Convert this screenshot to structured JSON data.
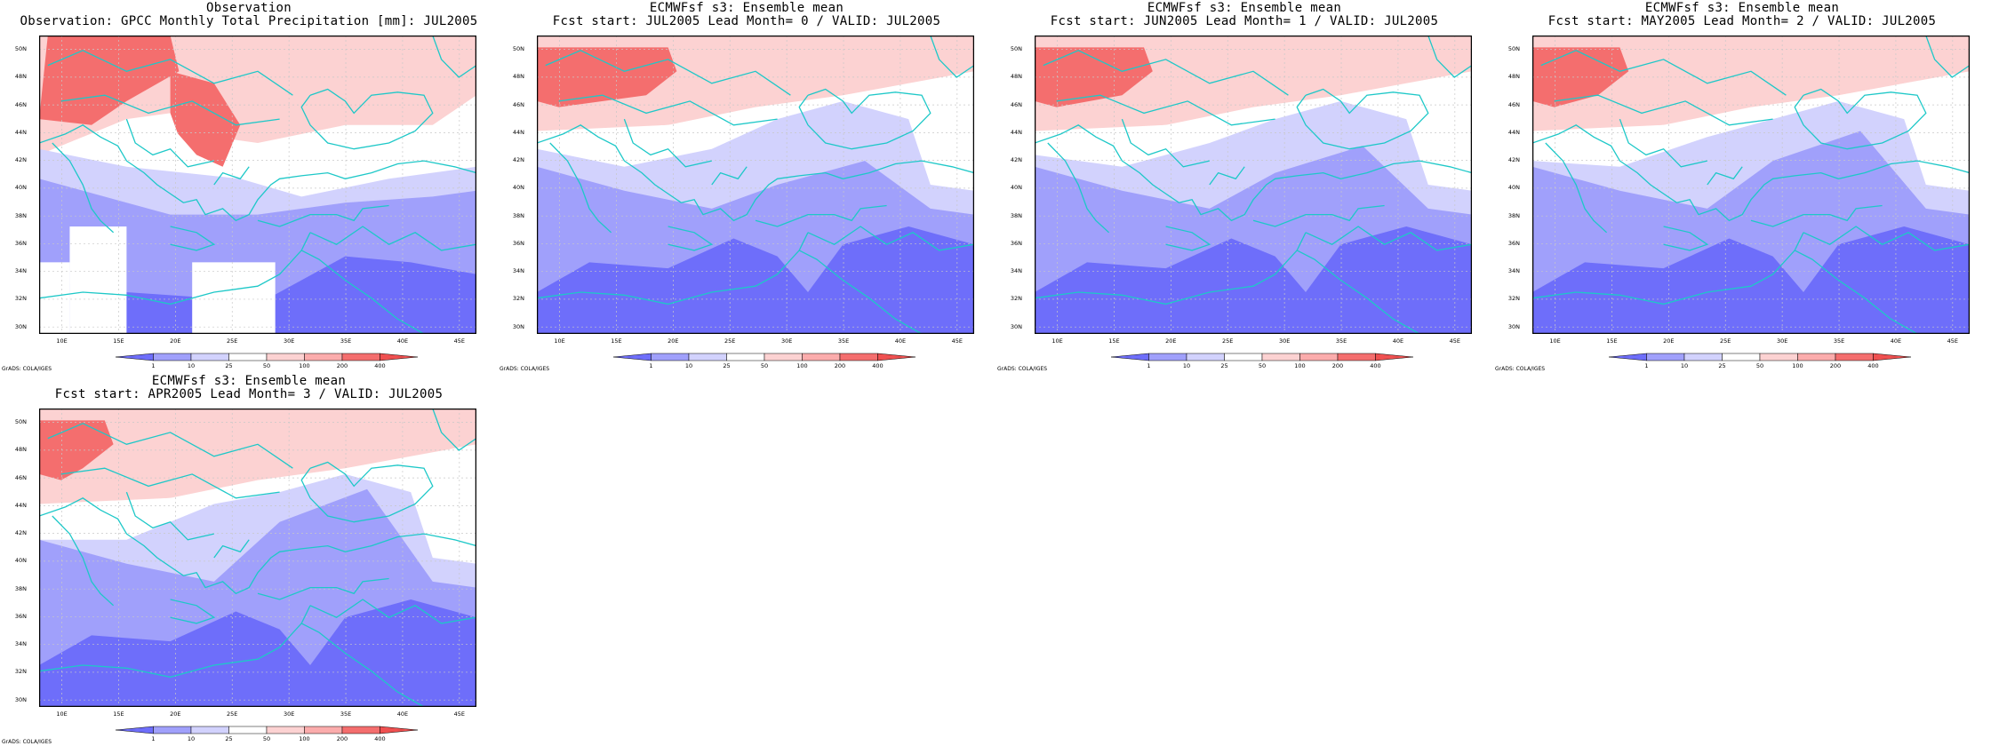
{
  "panels": [
    {
      "title_line1": "Observation",
      "title_line2": "Observation: GPCC Monthly Total Precipitation [mm]: JUL2005",
      "kind": "observation",
      "pattern": {
        "red_strong": [
          [
            0,
            0.04,
            0.3,
            0.16
          ],
          [
            0.28,
            0.18,
            0.42,
            0.42
          ]
        ],
        "red_light": [
          [
            0.0,
            0.0,
            0.95,
            0.34
          ]
        ],
        "blue_light": [
          [
            0.0,
            0.38,
            1.0,
            1.0
          ]
        ],
        "blue_mid": [
          [
            0.0,
            0.48,
            1.0,
            1.0
          ]
        ],
        "blue_strong": [
          [
            0.0,
            0.74,
            1.0,
            1.0
          ]
        ],
        "white_boxes": [
          [
            0.07,
            0.64,
            0.2,
            1.0
          ],
          [
            0.0,
            0.76,
            0.07,
            1.0
          ],
          [
            0.35,
            0.76,
            0.54,
            1.0
          ]
        ]
      }
    },
    {
      "title_line1": "ECMWFsf s3: Ensemble mean",
      "title_line2": "Fcst start: JUL2005  Lead Month= 0 / VALID: JUL2005",
      "kind": "forecast",
      "lead": 0
    },
    {
      "title_line1": "ECMWFsf s3: Ensemble mean",
      "title_line2": "Fcst start: JUN2005  Lead Month= 1 / VALID: JUL2005",
      "kind": "forecast",
      "lead": 1
    },
    {
      "title_line1": "ECMWFsf s3: Ensemble mean",
      "title_line2": "Fcst start: MAY2005  Lead Month= 2 / VALID: JUL2005",
      "kind": "forecast",
      "lead": 2
    },
    {
      "title_line1": "ECMWFsf s3: Ensemble mean",
      "title_line2": "Fcst start: APR2005  Lead Month= 3 / VALID: JUL2005",
      "kind": "forecast",
      "lead": 3
    }
  ],
  "lat_ticks": [
    "50N",
    "48N",
    "46N",
    "44N",
    "42N",
    "40N",
    "38N",
    "36N",
    "34N",
    "32N",
    "30N"
  ],
  "lon_ticks": [
    "10E",
    "15E",
    "20E",
    "25E",
    "30E",
    "35E",
    "40E",
    "45E"
  ],
  "lat_range": [
    29.5,
    51
  ],
  "lon_range": [
    8,
    46.5
  ],
  "colorbar": {
    "labels": [
      "1",
      "10",
      "25",
      "50",
      "100",
      "200",
      "400"
    ],
    "colors": [
      "#6e6efa",
      "#a0a0fb",
      "#d2d2fd",
      "#ffffff",
      "#fcd2d2",
      "#fbacac",
      "#f46e6e",
      "#ef5050"
    ]
  },
  "credit": "GrADS: COLA/IGES",
  "coast_color": "#1ec8c8"
}
